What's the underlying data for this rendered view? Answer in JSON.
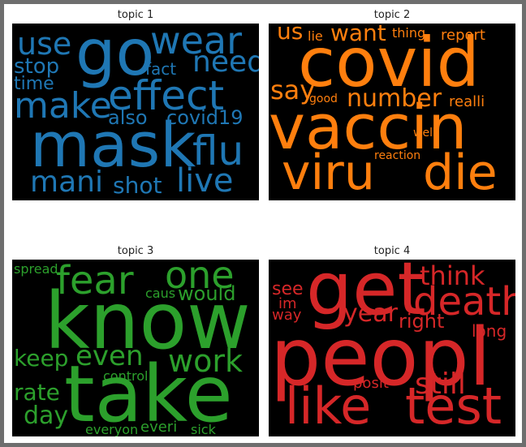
{
  "chart_data": [
    {
      "type": "wordcloud",
      "title": "topic 1",
      "color": "#1f77b4",
      "words": [
        "mask",
        "go",
        "effect",
        "wear",
        "flu",
        "make",
        "need",
        "live",
        "use",
        "mani",
        "covid19",
        "also",
        "stop",
        "shot",
        "time",
        "fact"
      ]
    },
    {
      "type": "wordcloud",
      "title": "topic 2",
      "color": "#ff7f0e",
      "words": [
        "vaccin",
        "covid",
        "viru",
        "die",
        "number",
        "want",
        "say",
        "us",
        "realli",
        "report",
        "thing",
        "lie",
        "good",
        "well",
        "reaction"
      ]
    },
    {
      "type": "wordcloud",
      "title": "topic 3",
      "color": "#2ca02c",
      "words": [
        "take",
        "know",
        "fear",
        "one",
        "work",
        "even",
        "keep",
        "rate",
        "day",
        "would",
        "caus",
        "spread",
        "control",
        "everi",
        "everyon",
        "sick"
      ]
    },
    {
      "type": "wordcloud",
      "title": "topic 4",
      "color": "#d62728",
      "words": [
        "peopl",
        "get",
        "like",
        "test",
        "death",
        "still",
        "think",
        "year",
        "right",
        "long",
        "see",
        "im",
        "way",
        "posit"
      ]
    }
  ]
}
